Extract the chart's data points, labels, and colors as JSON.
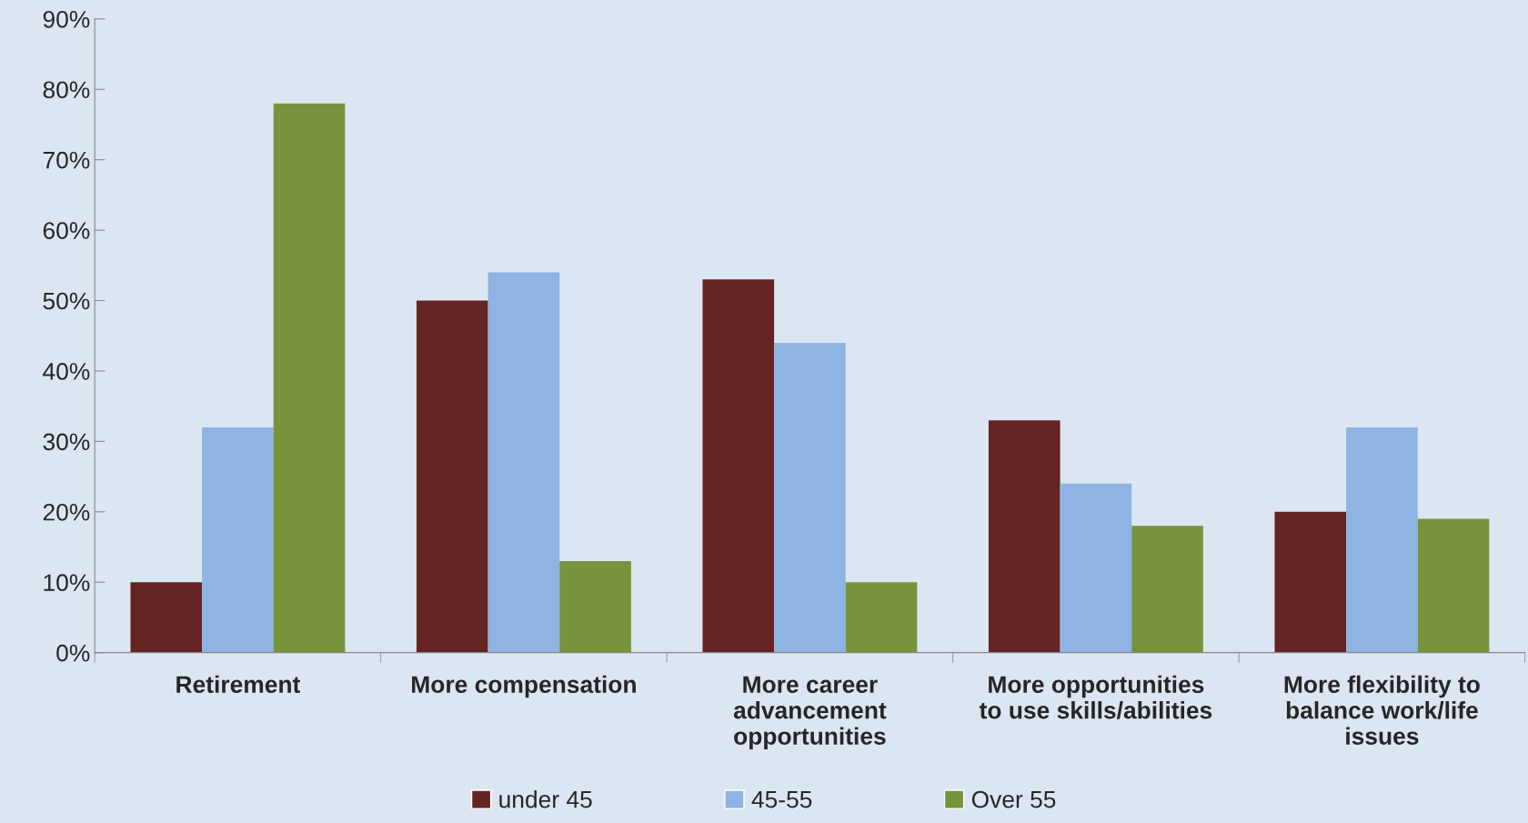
{
  "chart_data": {
    "type": "bar",
    "categories": [
      "Retirement",
      "More compensation",
      "More career\nadvancement\nopportunities",
      "More opportunities\nto use skills/abilities",
      "More flexibility to\nbalance work/life\nissues"
    ],
    "series": [
      {
        "name": "under 45",
        "color": "#632423",
        "values": [
          10,
          50,
          53,
          33,
          20
        ]
      },
      {
        "name": "45-55",
        "color": "#8eb4e3",
        "values": [
          32,
          54,
          44,
          24,
          32
        ]
      },
      {
        "name": "Over 55",
        "color": "#77933c",
        "values": [
          78,
          13,
          10,
          18,
          19
        ]
      }
    ],
    "ylim": [
      0,
      90
    ],
    "yticks": [
      {
        "value": 0,
        "label": "0%"
      },
      {
        "value": 10,
        "label": "10%"
      },
      {
        "value": 20,
        "label": "20%"
      },
      {
        "value": 30,
        "label": "30%"
      },
      {
        "value": 40,
        "label": "40%"
      },
      {
        "value": 50,
        "label": "50%"
      },
      {
        "value": 60,
        "label": "60%"
      },
      {
        "value": 70,
        "label": "70%"
      },
      {
        "value": 80,
        "label": "80%"
      },
      {
        "value": 90,
        "label": "90%"
      }
    ],
    "grid": false,
    "legend": "bottom"
  }
}
